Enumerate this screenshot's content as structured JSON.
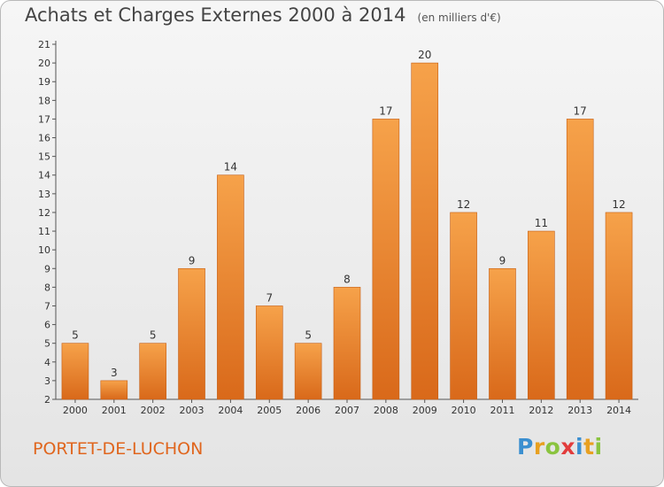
{
  "header": {
    "title": "Achats et Charges Externes 2000 à 2014",
    "subtitle": "(en milliers d'€)"
  },
  "footer": {
    "place": "PORTET-DE-LUCHON",
    "logo_letters": [
      "P",
      "r",
      "o",
      "x",
      "i",
      "t",
      "i"
    ],
    "logo_colors": [
      "#3b8fd0",
      "#e8a020",
      "#8ac43f",
      "#e23c3c",
      "#3b8fd0",
      "#e8a020",
      "#8ac43f"
    ]
  },
  "colors": {
    "bar_top": "#f6a24a",
    "bar_bottom": "#d9691a",
    "bar_edge": "#c55e14",
    "axis": "#555555",
    "grid": "#cfcfcf",
    "place": "#e0661e"
  },
  "chart_data": {
    "type": "bar",
    "title": "Achats et Charges Externes 2000 à 2014",
    "subtitle": "(en milliers d'€)",
    "categories": [
      "2000",
      "2001",
      "2002",
      "2003",
      "2004",
      "2005",
      "2006",
      "2007",
      "2008",
      "2009",
      "2010",
      "2011",
      "2012",
      "2013",
      "2014"
    ],
    "values": [
      5,
      3,
      5,
      9,
      14,
      7,
      5,
      8,
      17,
      20,
      12,
      9,
      11,
      17,
      12
    ],
    "ylim": [
      2,
      21
    ],
    "yticks": [
      2,
      3,
      4,
      5,
      6,
      7,
      8,
      9,
      10,
      11,
      12,
      13,
      14,
      15,
      16,
      17,
      18,
      19,
      20,
      21
    ],
    "grid": false,
    "data_labels": true
  }
}
